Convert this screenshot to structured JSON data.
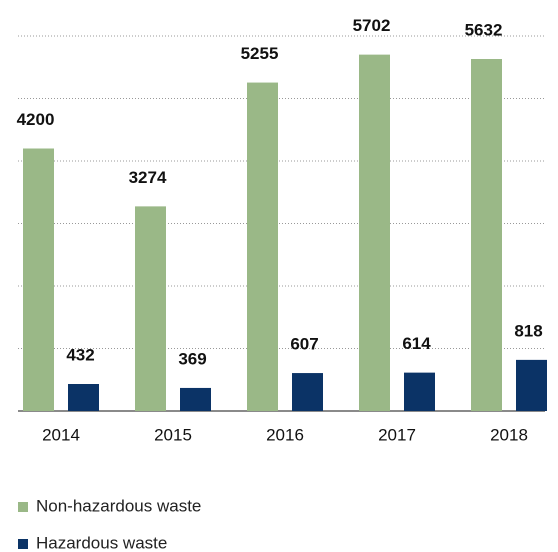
{
  "chart_data": {
    "type": "bar",
    "categories": [
      "2014",
      "2015",
      "2016",
      "2017",
      "2018"
    ],
    "series": [
      {
        "name": "Non-hazardous waste",
        "color": "#9ab887",
        "values": [
          4200,
          3274,
          5255,
          5702,
          5632
        ]
      },
      {
        "name": "Hazardous waste",
        "color": "#0b3366",
        "values": [
          432,
          369,
          607,
          614,
          818
        ]
      }
    ],
    "ylim": [
      0,
      6000
    ],
    "yticks": [
      0,
      1000,
      2000,
      3000,
      4000,
      5000,
      6000
    ],
    "grid": true
  }
}
